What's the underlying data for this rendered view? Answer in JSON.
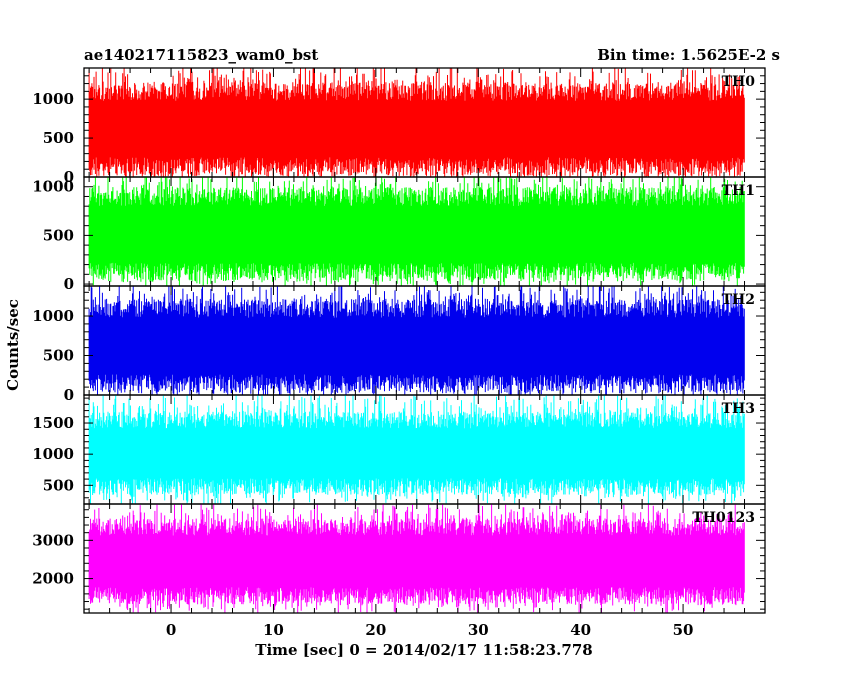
{
  "header": {
    "title": "ae140217115823_wam0_bst",
    "bin_time": "Bin time: 1.5625E-2 s"
  },
  "chart_data": {
    "type": "line",
    "title": "ae140217115823_wam0_bst",
    "xlabel": "Time [sec] 0 = 2014/02/17 11:58:23.778",
    "ylabel": "Counts/sec",
    "xlim": [
      -8.5,
      58
    ],
    "data_x_range": [
      -8,
      56
    ],
    "x_ticks": [
      0,
      10,
      20,
      30,
      40,
      50
    ],
    "x_tick_labels": [
      "0",
      "10",
      "20",
      "30",
      "40",
      "50"
    ],
    "grid": false,
    "series": [
      {
        "name": "TH0",
        "color": "#ff0000",
        "ylim": [
          0,
          1400
        ],
        "y_ticks": [
          0,
          500,
          1000
        ],
        "y_tick_labels": [
          "0",
          "500",
          "1000"
        ],
        "typical_low": 130,
        "typical_high": 1100,
        "min": 30,
        "max": 1400
      },
      {
        "name": "TH1",
        "color": "#00ff00",
        "ylim": [
          -20,
          1100
        ],
        "y_ticks": [
          0,
          500,
          1000
        ],
        "y_tick_labels": [
          "0",
          "500",
          "1000"
        ],
        "typical_low": 120,
        "typical_high": 900,
        "min": 40,
        "max": 1100
      },
      {
        "name": "TH2",
        "color": "#0000ee",
        "ylim": [
          0,
          1380
        ],
        "y_ticks": [
          0,
          500,
          1000
        ],
        "y_tick_labels": [
          "0",
          "500",
          "1000"
        ],
        "typical_low": 140,
        "typical_high": 1100,
        "min": 30,
        "max": 1380
      },
      {
        "name": "TH3",
        "color": "#00ffff",
        "ylim": [
          200,
          1950
        ],
        "y_ticks": [
          500,
          1000,
          1500
        ],
        "y_tick_labels": [
          "500",
          "1000",
          "1500"
        ],
        "typical_low": 480,
        "typical_high": 1550,
        "min": 250,
        "max": 1950
      },
      {
        "name": "TH0123",
        "color": "#ff00ff",
        "ylim": [
          1100,
          3950
        ],
        "y_ticks": [
          2000,
          3000
        ],
        "y_tick_labels": [
          "2000",
          "3000"
        ],
        "typical_low": 1550,
        "typical_high": 3350,
        "min": 1200,
        "max": 3900
      }
    ]
  }
}
